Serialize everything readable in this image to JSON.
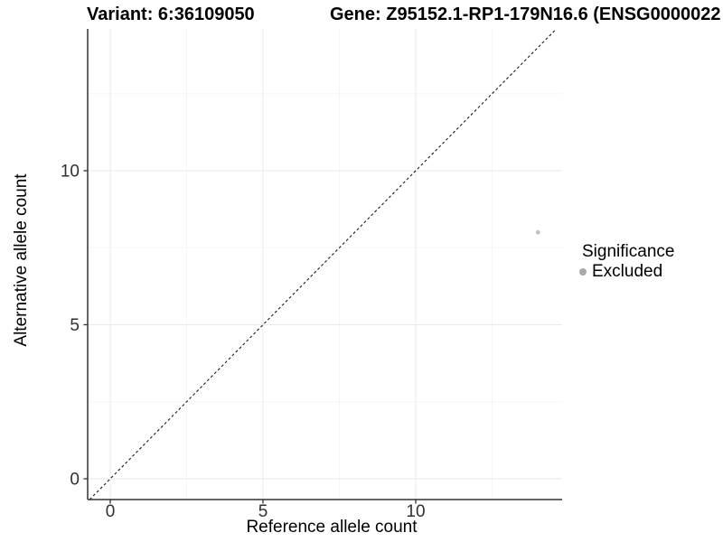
{
  "titles": {
    "variant": "Variant: 6:36109050",
    "gene": "Gene: Z95152.1-RP1-179N16.6 (ENSG0000022"
  },
  "chart_data": {
    "type": "scatter",
    "xlabel": "Reference allele count",
    "ylabel": "Alternative allele count",
    "x_ticks": [
      0,
      5,
      10
    ],
    "y_ticks": [
      0,
      5,
      10
    ],
    "xlim": [
      -0.7,
      14.8
    ],
    "ylim": [
      -0.7,
      14.6
    ],
    "grid": "major+minor",
    "minor_tick_offset": 2.5,
    "identity_line": {
      "slope": 1,
      "intercept": 0,
      "linetype": "dashed",
      "color": "#1a1a1a"
    },
    "points": [
      {
        "x": 14,
        "y": 8,
        "series": "Excluded",
        "color": "#c4c4c4",
        "radius": 2.4
      }
    ],
    "legend": {
      "title": "Significance",
      "position": "right",
      "entries": [
        {
          "label": "Excluded",
          "color": "#a9a9a9"
        }
      ]
    },
    "colors": {
      "grid_major": "#e9e9e9",
      "grid_minor": "#f5f5f5",
      "axis": "#333333",
      "tick": "#333333",
      "tick_label": "#303030"
    }
  }
}
